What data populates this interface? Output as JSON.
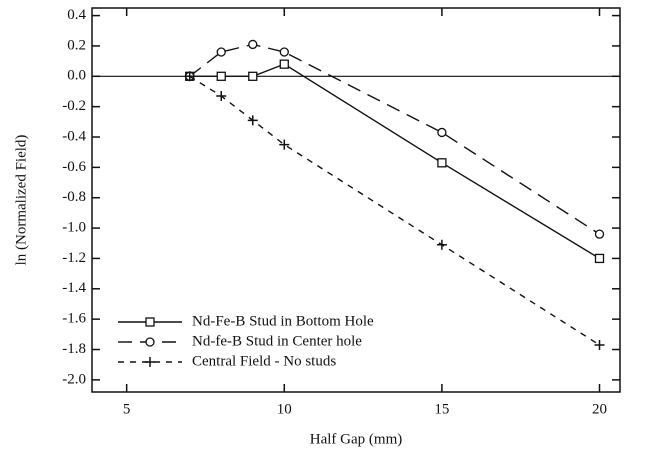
{
  "chart_data": {
    "type": "line",
    "x_label": "Half Gap (mm)",
    "y_label": "ln (Normalized Field)",
    "x": [
      7,
      8,
      9,
      10,
      15,
      20
    ],
    "series": [
      {
        "name": "Nd-Fe-B Stud in Bottom Hole",
        "color": "#111111",
        "marker": "square",
        "dash": "solid",
        "values": [
          0,
          0,
          0,
          0.08,
          -0.57,
          -1.2
        ]
      },
      {
        "name": "Nd-fe-B Stud in Center hole",
        "color": "#111111",
        "marker": "circle",
        "dash": "long",
        "values": [
          0,
          0.16,
          0.21,
          0.16,
          -0.37,
          -1.04
        ]
      },
      {
        "name": "Central Field - No studs",
        "color": "#111111",
        "marker": "plus",
        "dash": "short",
        "values": [
          0,
          -0.13,
          -0.29,
          -0.45,
          -1.11,
          -1.77
        ]
      }
    ],
    "xlim": [
      3.9,
      20.65
    ],
    "xticks": [
      5,
      10,
      15,
      20
    ],
    "ylim": [
      -2.08,
      0.45
    ],
    "yticks": [
      0.4,
      0.2,
      {
        "value": 0,
        "label": "0.0"
      },
      -0.2,
      -0.4,
      -0.6,
      -0.8,
      {
        "value": -1,
        "label": "-1.0"
      },
      -1.2,
      -1.4,
      -1.6,
      -1.8,
      {
        "value": -2,
        "label": "-2.0"
      }
    ],
    "zero_line": true,
    "legend": "lower left"
  }
}
